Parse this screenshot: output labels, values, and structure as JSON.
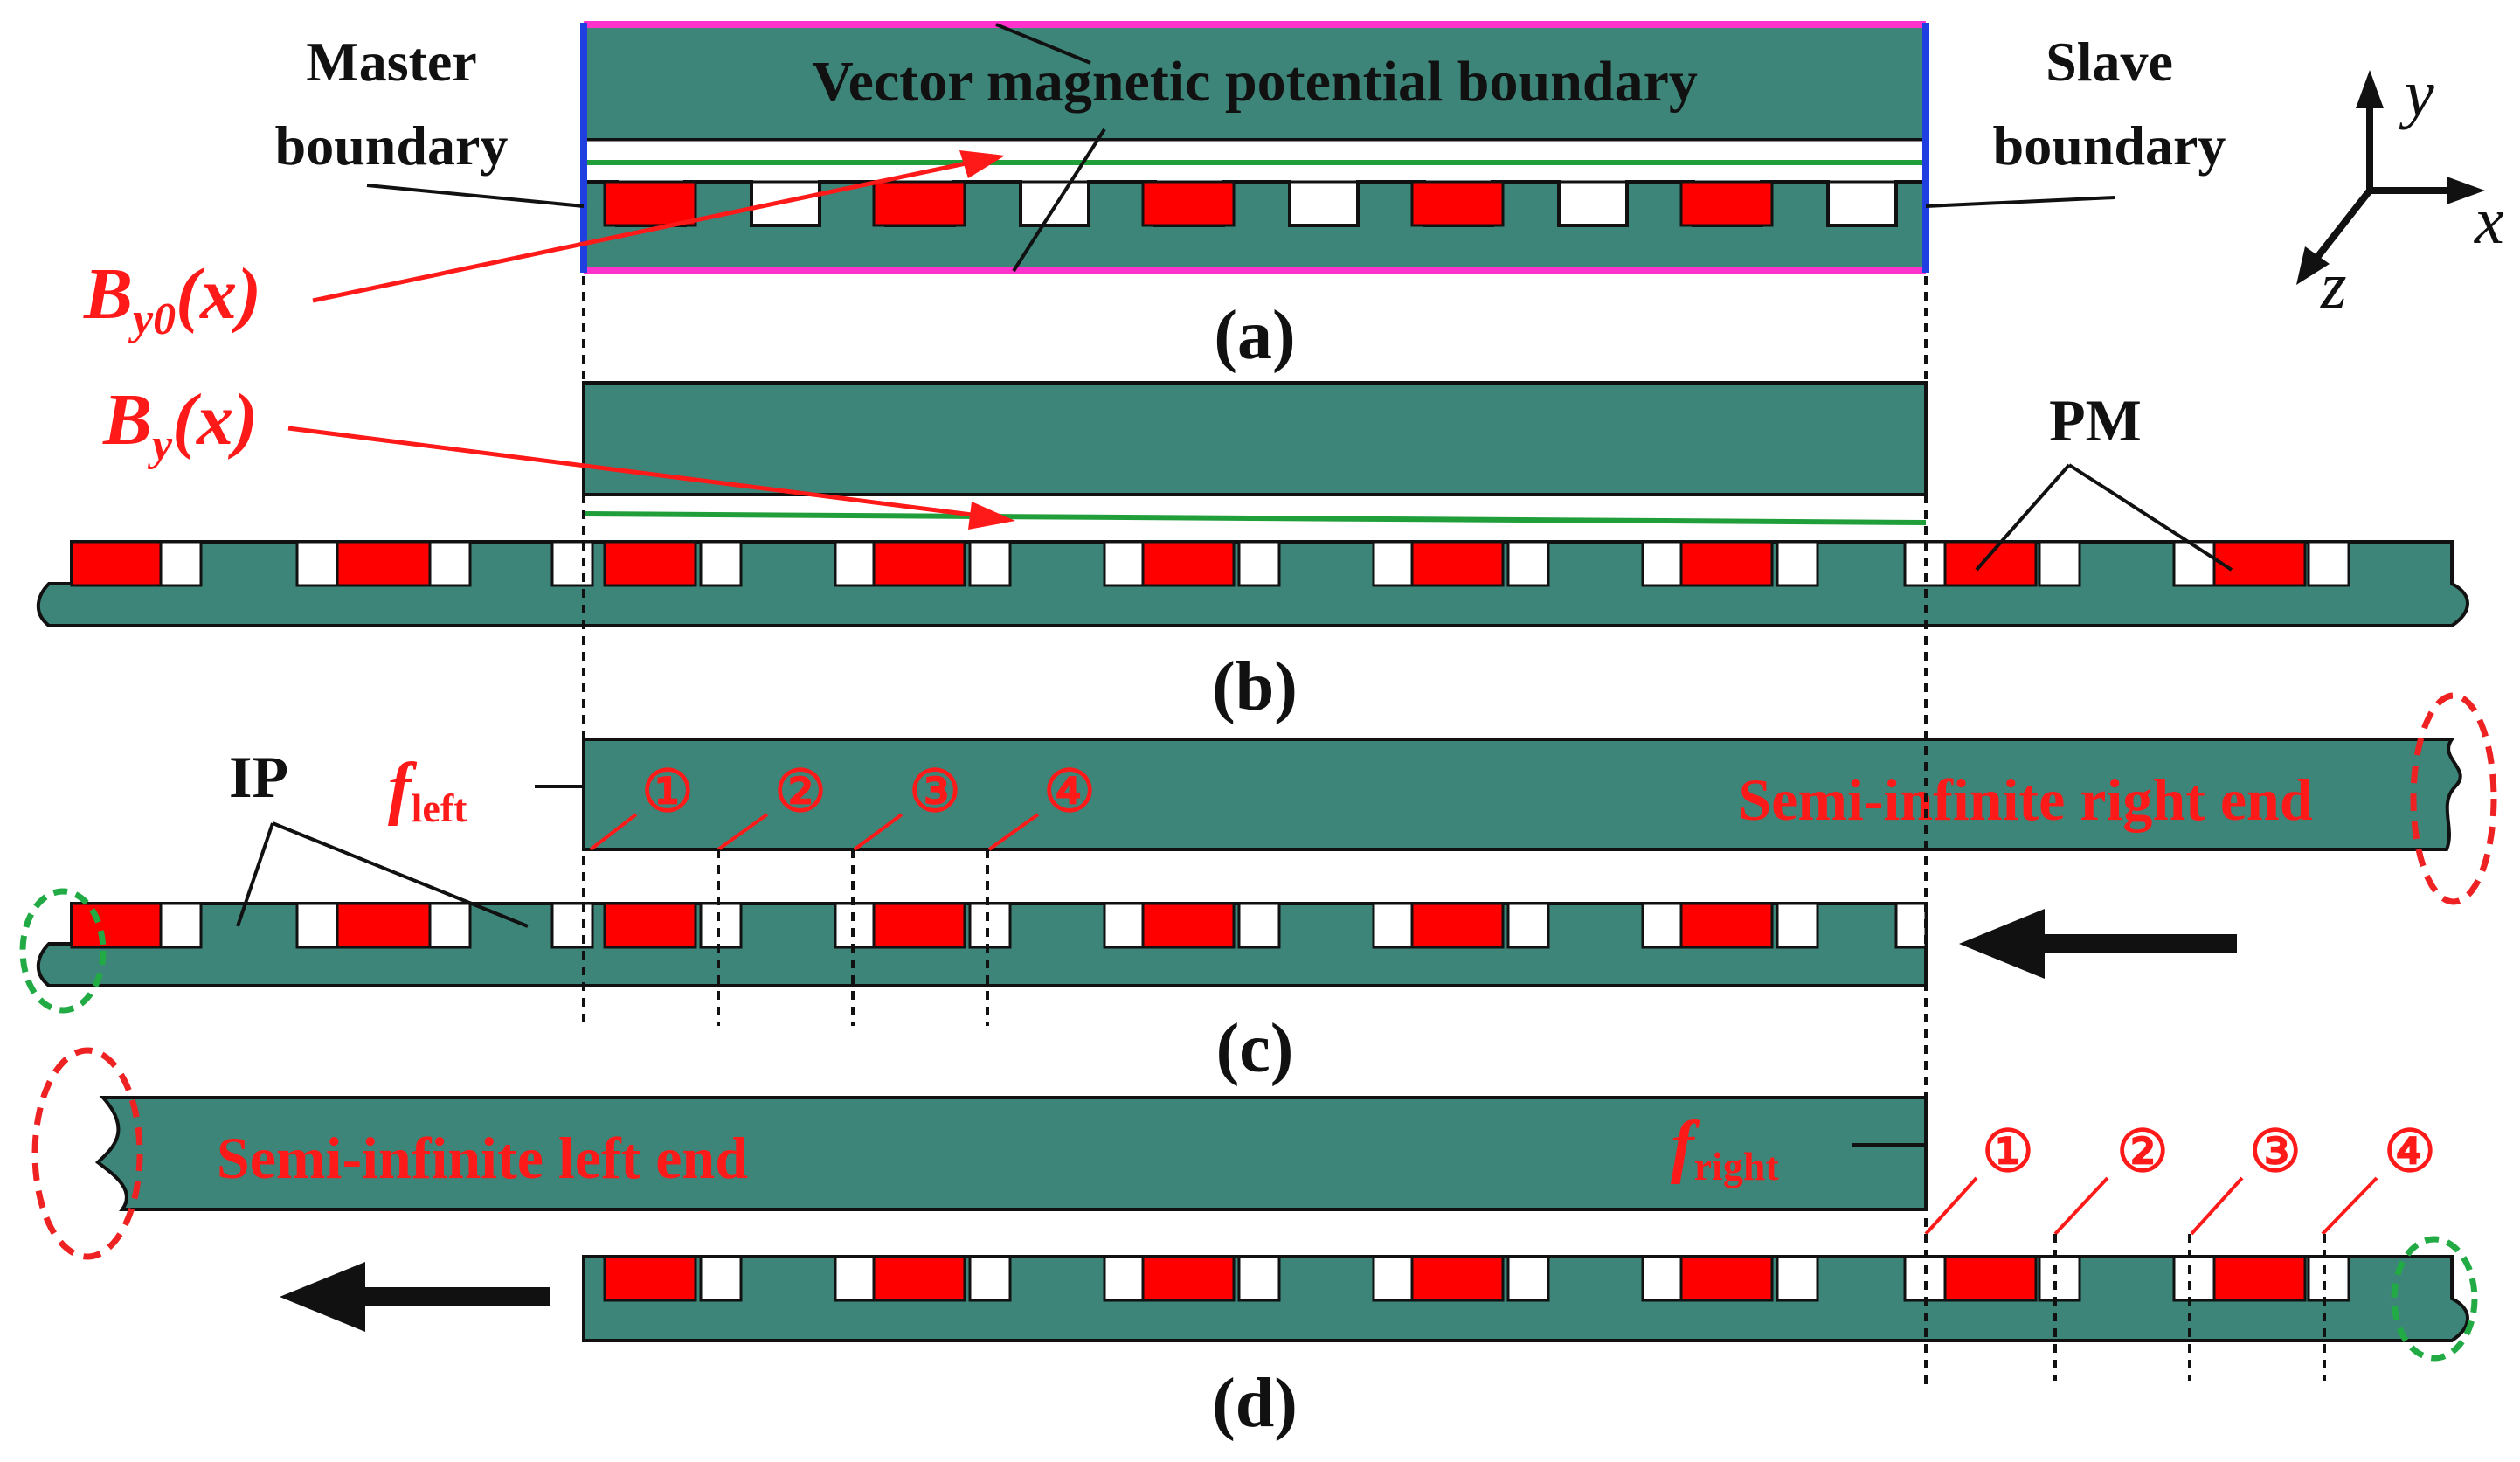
{
  "colors": {
    "steel": "#3d8479",
    "pm": "#ff0000",
    "outline": "#111111",
    "annotation": "#ff1a1a",
    "magenta": "#ff33cc",
    "blue": "#1f3fe0",
    "green": "#1f9e3a",
    "green_dashed": "#22aa44",
    "red_dashed": "#ee2222"
  },
  "panels": {
    "a": {
      "caption": "(a)",
      "master_line1": "Master",
      "master_line2": "boundary",
      "slave_line1": "Slave",
      "slave_line2": "boundary",
      "vector_label": "Vector magnetic potential boundary",
      "field_base": "B",
      "field_sub": "y0",
      "field_arg": "(x)"
    },
    "b": {
      "caption": "(b)",
      "field_base": "B",
      "field_sub": "y",
      "field_arg": "(x)",
      "pm_label": "PM"
    },
    "c": {
      "caption": "(c)",
      "ip_label": "IP",
      "force_base": "f",
      "force_sub": "left",
      "end_label": "Semi-infinite right end",
      "markers": [
        "①",
        "②",
        "③",
        "④"
      ]
    },
    "d": {
      "caption": "(d)",
      "force_base": "f",
      "force_sub": "right",
      "end_label": "Semi-infinite left end",
      "markers": [
        "①",
        "②",
        "③",
        "④"
      ]
    }
  },
  "axes": {
    "x": "x",
    "y": "y",
    "z": "z"
  }
}
